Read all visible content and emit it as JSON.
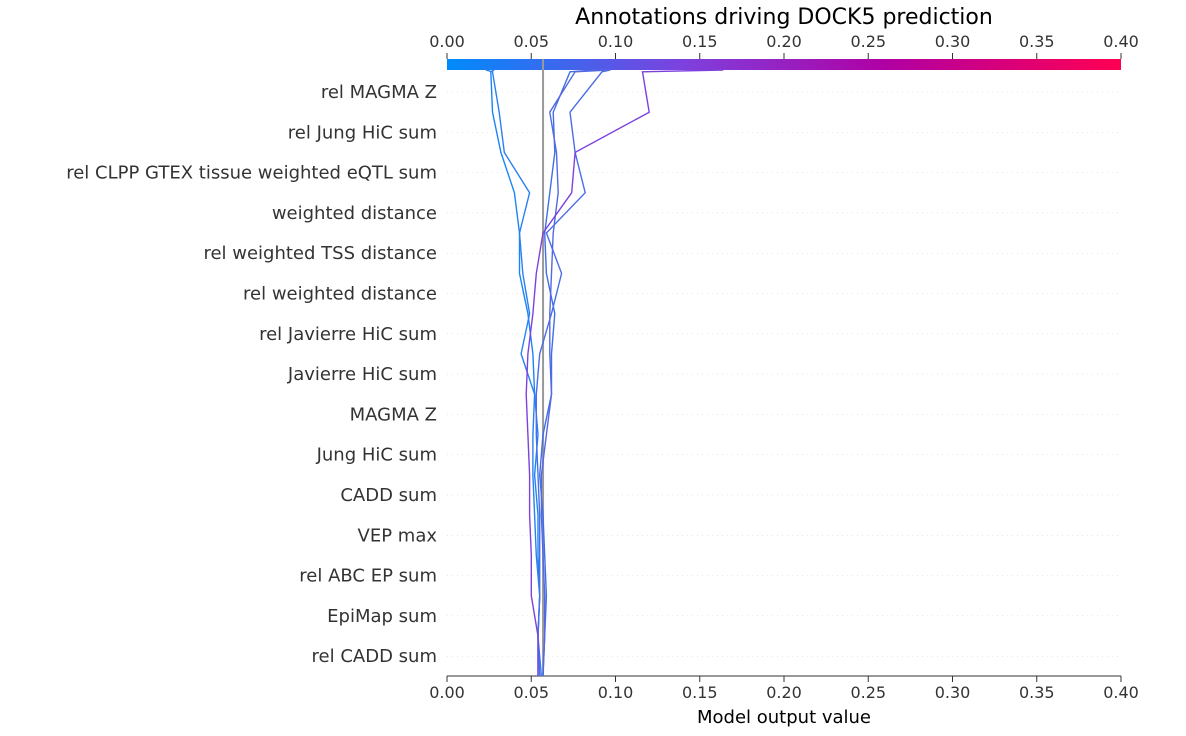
{
  "chart_data": {
    "type": "line",
    "title": "Annotations driving DOCK5 prediction",
    "xlabel": "Model output value",
    "xlim": [
      0.0,
      0.4
    ],
    "x_ticks": [
      "0.00",
      "0.05",
      "0.10",
      "0.15",
      "0.20",
      "0.25",
      "0.30",
      "0.35",
      "0.40"
    ],
    "expected_value": 0.057,
    "colorbar": {
      "min": 0.0,
      "max": 0.4,
      "colors": [
        "#008bfb",
        "#7d41de",
        "#b000a3",
        "#ff0052"
      ]
    },
    "features": [
      "rel MAGMA Z",
      "rel Jung HiC sum",
      "rel CLPP GTEX tissue weighted eQTL sum",
      "weighted distance",
      "rel weighted TSS distance",
      "rel weighted distance",
      "rel Javierre HiC sum",
      "Javierre HiC sum",
      "MAGMA Z",
      "Jung HiC sum",
      "CADD sum",
      "VEP max",
      "rel ABC EP sum",
      "EpiMap sum",
      "rel CADD sum"
    ],
    "series": [
      {
        "color": "#1a86f5",
        "values": [
          0.054,
          0.054,
          0.055,
          0.054,
          0.054,
          0.052,
          0.054,
          0.052,
          0.051,
          0.048,
          0.043,
          0.043,
          0.04,
          0.032,
          0.027,
          0.026,
          0.028
        ]
      },
      {
        "color": "#2a80f0",
        "values": [
          0.056,
          0.054,
          0.055,
          0.053,
          0.052,
          0.051,
          0.051,
          0.052,
          0.044,
          0.049,
          0.045,
          0.043,
          0.049,
          0.034,
          0.031,
          0.027,
          0.023
        ]
      },
      {
        "color": "#3f6fe5",
        "values": [
          0.057,
          0.058,
          0.059,
          0.058,
          0.057,
          0.055,
          0.057,
          0.062,
          0.062,
          0.064,
          0.059,
          0.058,
          0.061,
          0.064,
          0.063,
          0.073,
          0.088
        ]
      },
      {
        "color": "#4a6ee6",
        "values": [
          0.055,
          0.054,
          0.055,
          0.055,
          0.055,
          0.054,
          0.053,
          0.053,
          0.055,
          0.062,
          0.068,
          0.059,
          0.082,
          0.076,
          0.073,
          0.092,
          0.097
        ]
      },
      {
        "color": "#5568e3",
        "values": [
          0.057,
          0.058,
          0.058,
          0.057,
          0.056,
          0.056,
          0.059,
          0.062,
          0.061,
          0.061,
          0.062,
          0.063,
          0.066,
          0.065,
          0.061,
          0.076,
          0.096
        ]
      },
      {
        "color": "#7d41de",
        "values": [
          0.054,
          0.054,
          0.05,
          0.05,
          0.049,
          0.049,
          0.048,
          0.047,
          0.048,
          0.051,
          0.053,
          0.057,
          0.074,
          0.076,
          0.12,
          0.116,
          0.164
        ]
      }
    ]
  }
}
